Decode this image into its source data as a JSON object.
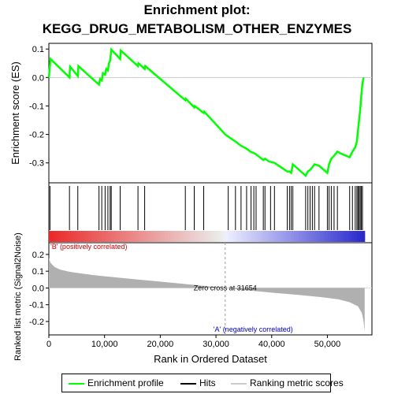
{
  "title": "Enrichment plot:",
  "subtitle": "KEGG_DRUG_METABOLISM_OTHER_ENZYMES",
  "colors": {
    "enrichment": "#00ff00",
    "hits": "#000000",
    "metric_fill": "#b0b0b0",
    "pos_label": "#cc0000",
    "neg_label": "#0000cc",
    "zero_line": "#999999"
  },
  "chart_data": [
    {
      "type": "line",
      "name": "enrichment-score-panel",
      "ylabel": "Enrichment score (ES)",
      "ylim": [
        -0.37,
        0.12
      ],
      "yticks": [
        0.1,
        0.0,
        -0.1,
        -0.2,
        -0.3
      ],
      "ytick_labels": [
        "0.1",
        "0.0",
        "-0.1",
        "-0.2",
        "-0.3"
      ],
      "xlim": [
        0,
        58000
      ],
      "series": [
        {
          "x": [
            0,
            300,
            3700,
            3800,
            5200,
            5300,
            9000,
            9200,
            9500,
            9700,
            10100,
            10300,
            10600,
            10800,
            11000,
            11200,
            12800,
            12900,
            16000,
            16100,
            17200,
            17300,
            24500,
            24600,
            26100,
            26200,
            27800,
            27900,
            31654,
            32000,
            33500,
            34500,
            35500,
            36300,
            36800,
            37200,
            38500,
            38800,
            39500,
            40500,
            42800,
            43200,
            43500,
            43800,
            46100,
            46500,
            46900,
            47300,
            47700,
            48500,
            50000,
            50300,
            50700,
            51200,
            51800,
            52200,
            54000,
            54500,
            55000,
            55300,
            55500,
            55700,
            55900,
            56100,
            56300,
            56500
          ],
          "y": [
            0.0,
            0.065,
            0.0,
            0.038,
            0.005,
            0.04,
            -0.025,
            -0.005,
            -0.01,
            0.015,
            0.01,
            0.03,
            0.025,
            0.05,
            0.06,
            0.098,
            0.065,
            0.095,
            0.04,
            0.05,
            0.03,
            0.04,
            -0.08,
            -0.075,
            -0.105,
            -0.1,
            -0.125,
            -0.12,
            -0.2,
            -0.205,
            -0.225,
            -0.24,
            -0.25,
            -0.262,
            -0.265,
            -0.27,
            -0.29,
            -0.285,
            -0.295,
            -0.3,
            -0.33,
            -0.33,
            -0.335,
            -0.305,
            -0.345,
            -0.33,
            -0.325,
            -0.315,
            -0.305,
            -0.31,
            -0.335,
            -0.305,
            -0.285,
            -0.275,
            -0.26,
            -0.265,
            -0.28,
            -0.26,
            -0.245,
            -0.225,
            -0.185,
            -0.15,
            -0.11,
            -0.06,
            -0.02,
            0.0
          ]
        }
      ]
    },
    {
      "type": "scatter",
      "name": "hits-panel",
      "hits": [
        200,
        3700,
        5200,
        9000,
        9500,
        10100,
        10600,
        11000,
        11200,
        12800,
        16000,
        17200,
        24500,
        26100,
        27800,
        32200,
        33500,
        34500,
        35500,
        36300,
        36800,
        37200,
        38500,
        38800,
        39800,
        40500,
        42800,
        43200,
        43500,
        43800,
        46100,
        46500,
        46900,
        47300,
        47700,
        48500,
        50000,
        50300,
        50700,
        51200,
        51800,
        54000,
        54500,
        55000,
        55300,
        55500,
        55700,
        55900,
        56100,
        56300
      ]
    },
    {
      "type": "area",
      "name": "ranked-metric-panel",
      "ylabel": "Ranked list metric (Signal2Noise)",
      "xlabel": "Rank in Ordered Dataset",
      "ylim": [
        -0.28,
        0.27
      ],
      "yticks": [
        0.2,
        0.1,
        0.0,
        -0.1,
        -0.2
      ],
      "ytick_labels": [
        "0.2",
        "0.1",
        "0.0",
        "-0.1",
        "-0.2"
      ],
      "xlim": [
        0,
        58000
      ],
      "xticks": [
        0,
        10000,
        20000,
        30000,
        40000,
        50000
      ],
      "xtick_labels": [
        "0",
        "10,000",
        "20,000",
        "30,000",
        "40,000",
        "50,000"
      ],
      "x": [
        0,
        300,
        1000,
        2000,
        3500,
        5000,
        8000,
        12000,
        16000,
        20000,
        24000,
        28000,
        31654,
        35000,
        40000,
        45000,
        49000,
        52000,
        54000,
        55500,
        56200,
        56500,
        56700
      ],
      "values": [
        0.18,
        0.15,
        0.125,
        0.11,
        0.098,
        0.09,
        0.077,
        0.063,
        0.05,
        0.038,
        0.025,
        0.012,
        0.0,
        -0.012,
        -0.028,
        -0.042,
        -0.055,
        -0.068,
        -0.085,
        -0.11,
        -0.15,
        -0.2,
        -0.26
      ],
      "zero_cross": 31654,
      "annotations": {
        "positive": "'B' (positively correlated)",
        "negative": "'A' (negatively correlated)",
        "zero_cross": "Zero cross at 31654"
      }
    }
  ],
  "legend": {
    "items": [
      {
        "label": "Enrichment profile",
        "color": "#00ff00"
      },
      {
        "label": "Hits",
        "color": "#000000"
      },
      {
        "label": "Ranking metric scores",
        "color": "#cccccc"
      }
    ]
  }
}
